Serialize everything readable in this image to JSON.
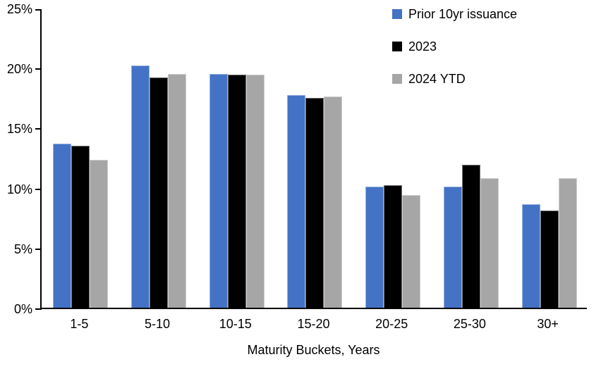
{
  "chart_data": {
    "type": "bar",
    "title": "",
    "categories": [
      "1-5",
      "5-10",
      "10-15",
      "15-20",
      "20-25",
      "25-30",
      "30+"
    ],
    "series": [
      {
        "name": "Prior 10yr issuance",
        "color": "#4472C4",
        "values": [
          13.7,
          20.2,
          19.5,
          17.7,
          10.1,
          10.1,
          8.6
        ]
      },
      {
        "name": "2023",
        "color": "#000000",
        "values": [
          13.5,
          19.2,
          19.4,
          17.5,
          10.2,
          11.9,
          8.1
        ]
      },
      {
        "name": "2024 YTD",
        "color": "#A6A6A6",
        "values": [
          12.3,
          19.5,
          19.4,
          17.6,
          9.4,
          10.8,
          10.8
        ]
      }
    ],
    "xlabel": "Maturity Buckets, Years",
    "ylabel": "",
    "ylim": [
      0,
      25
    ],
    "ytick_step": 5,
    "ytick_labels": [
      "0%",
      "5%",
      "10%",
      "15%",
      "20%",
      "25%"
    ],
    "legend_position": "top-right",
    "grid": false,
    "axis_color": "#000000",
    "background_color": "#ffffff"
  }
}
